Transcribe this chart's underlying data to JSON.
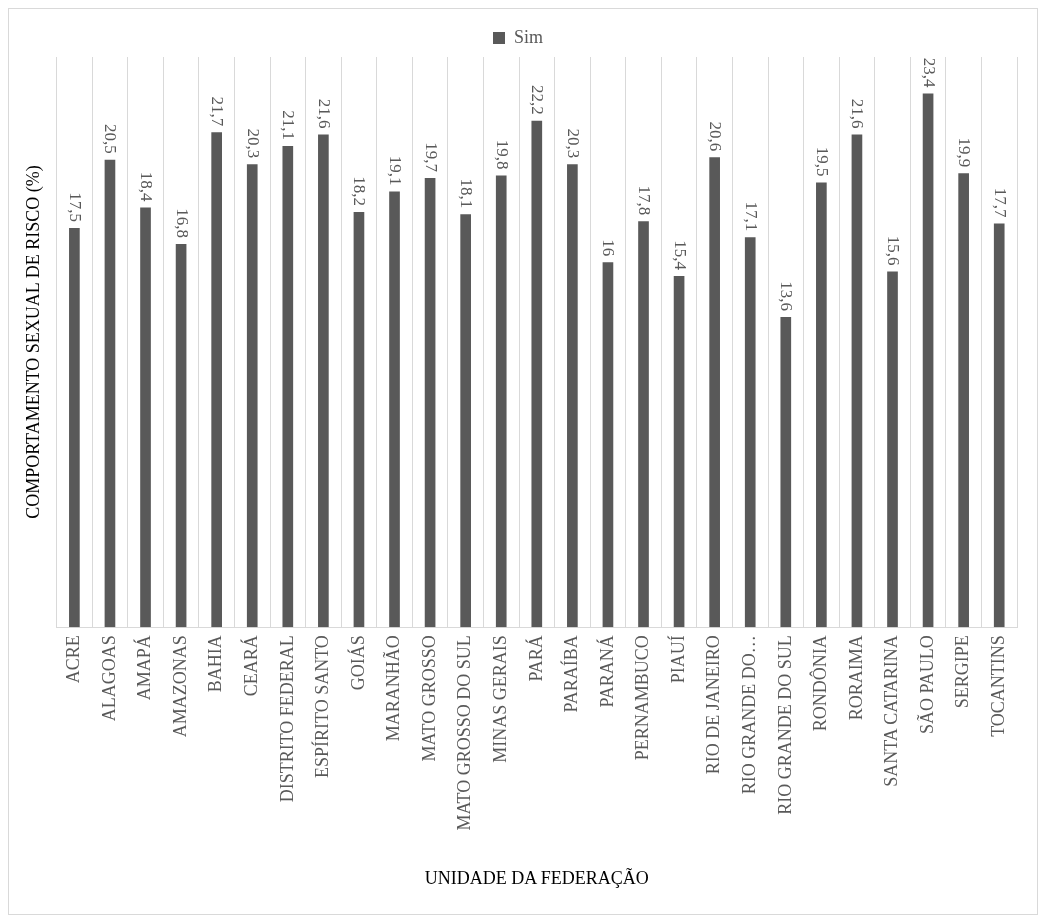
{
  "chart_data": {
    "type": "bar",
    "xlabel": "UNIDADE DA FEDERAÇÃO",
    "ylabel": "COMPORTAMENTO SEXUAL DE RISCO (%)",
    "categories": [
      "ACRE",
      "ALAGOAS",
      "AMAPÁ",
      "AMAZONAS",
      "BAHIA",
      "CEARÁ",
      "DISTRITO FEDERAL",
      "ESPÍRITO SANTO",
      "GOIÁS",
      "MARANHÃO",
      "MATO GROSSO",
      "MATO GROSSO DO SUL",
      "MINAS GERAIS",
      "PARÁ",
      "PARAÍBA",
      "PARANÁ",
      "PERNAMBUCO",
      "PIAUÍ",
      "RIO DE JANEIRO",
      "RIO GRANDE DO…",
      "RIO GRANDE DO SUL",
      "RONDÔNIA",
      "RORAIMA",
      "SANTA CATARINA",
      "SÃO PAULO",
      "SERGIPE",
      "TOCANTINS"
    ],
    "series": [
      {
        "name": "Sim",
        "color": "#595959",
        "values": [
          17.5,
          20.5,
          18.4,
          16.8,
          21.7,
          20.3,
          21.1,
          21.6,
          18.2,
          19.1,
          19.7,
          18.1,
          19.8,
          22.2,
          20.3,
          16,
          17.8,
          15.4,
          20.6,
          17.1,
          13.6,
          19.5,
          21.6,
          15.6,
          23.4,
          19.9,
          17.7
        ],
        "value_labels": [
          "17,5",
          "20,5",
          "18,4",
          "16,8",
          "21,7",
          "20,3",
          "21,1",
          "21,6",
          "18,2",
          "19,1",
          "19,7",
          "18,1",
          "19,8",
          "22,2",
          "20,3",
          "16",
          "17,8",
          "15,4",
          "20,6",
          "17,1",
          "13,6",
          "19,5",
          "21,6",
          "15,6",
          "23,4",
          "19,9",
          "17,7"
        ]
      }
    ],
    "grid": "x",
    "legend": "top",
    "tick_labels": "x"
  }
}
